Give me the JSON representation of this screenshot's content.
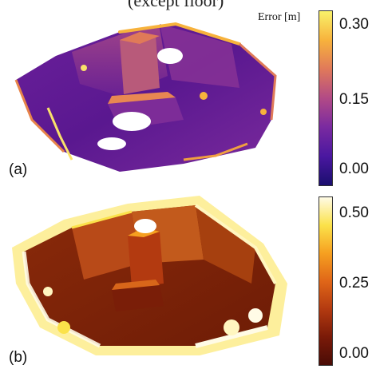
{
  "caption_fragment": "(except floor)",
  "panels": [
    {
      "label": "(a)",
      "colorbar_title": "Error [m]",
      "colormap": [
        "#1a0e6e",
        "#4a17a0",
        "#7a2aa0",
        "#b24a86",
        "#e0795a",
        "#f7b23c",
        "#f9f26a"
      ],
      "ticks": [
        "0.30",
        "0.15",
        "0.00"
      ],
      "tick_values": [
        0.3,
        0.15,
        0.0
      ],
      "range": [
        0.0,
        0.33
      ]
    },
    {
      "label": "(b)",
      "colorbar_title": "",
      "colormap": [
        "#4a0c06",
        "#7a1a08",
        "#b33a10",
        "#e06618",
        "#f6a020",
        "#fbe24a",
        "#fffbe6"
      ],
      "ticks": [
        "0.50",
        "0.25",
        "0.00"
      ],
      "tick_values": [
        0.5,
        0.25,
        0.0
      ],
      "range": [
        0.0,
        0.55
      ]
    }
  ]
}
